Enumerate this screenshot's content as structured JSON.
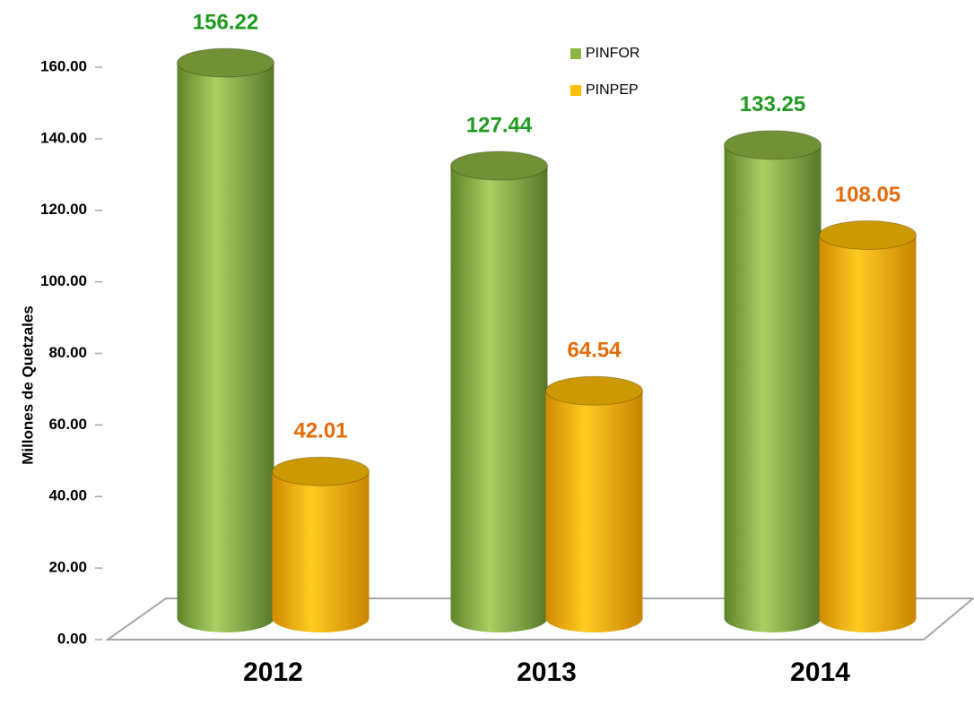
{
  "chart_data": {
    "type": "cylinder-bar",
    "y_label": "Millones de Quetzales",
    "categories": [
      "2012",
      "2013",
      "2014"
    ],
    "series": [
      {
        "name": "PINFOR",
        "color": "#8db544",
        "label_color": "#1f9a1f",
        "values": [
          156.22,
          127.44,
          133.25
        ]
      },
      {
        "name": "PINPEP",
        "color": "#ffc000",
        "label_color": "#e36c0a",
        "values": [
          42.01,
          64.54,
          108.05
        ]
      }
    ],
    "ylim": [
      0,
      160
    ],
    "yticks": [
      {
        "value": 0,
        "label": "0.00"
      },
      {
        "value": 20,
        "label": "20.00"
      },
      {
        "value": 40,
        "label": "40.00"
      },
      {
        "value": 60,
        "label": "60.00"
      },
      {
        "value": 80,
        "label": "80.00"
      },
      {
        "value": 100,
        "label": "100.00"
      },
      {
        "value": 120,
        "label": "120.00"
      },
      {
        "value": 140,
        "label": "140.00"
      },
      {
        "value": 160,
        "label": "160.00"
      }
    ],
    "legend": "top"
  }
}
